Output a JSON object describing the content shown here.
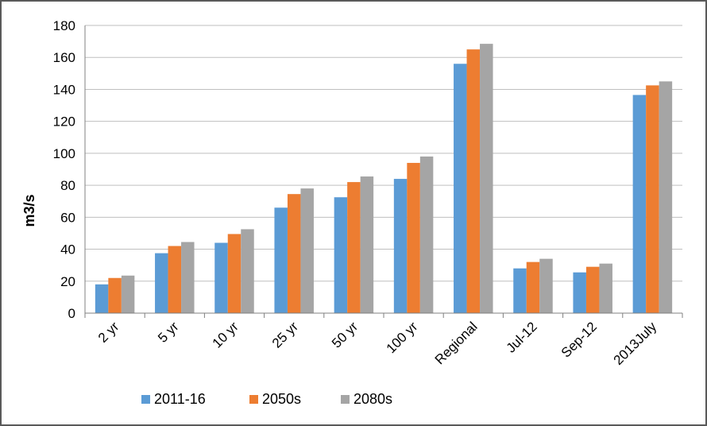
{
  "chart_data": {
    "type": "bar",
    "title": "",
    "xlabel": "",
    "ylabel": "m3/s",
    "ylim": [
      0,
      180
    ],
    "yticks": [
      "0",
      "20",
      "40",
      "60",
      "80",
      "100",
      "120",
      "140",
      "160",
      "180"
    ],
    "grid": true,
    "legend_position": "bottom",
    "categories": [
      "2 yr",
      "5 yr",
      "10 yr",
      "25 yr",
      "50 yr",
      "100 yr",
      "Regional",
      "Jul-12",
      "Sep-12",
      "2013July"
    ],
    "series": [
      {
        "name": "2011-16",
        "color": "#5B9BD5",
        "values": [
          18,
          37.5,
          44,
          66,
          72.5,
          84,
          156,
          28,
          25.5,
          136.5
        ]
      },
      {
        "name": "2050s",
        "color": "#ED7D31",
        "values": [
          22,
          42,
          49.5,
          74.5,
          82,
          94,
          165,
          32,
          29,
          142.5
        ]
      },
      {
        "name": "2080s",
        "color": "#A5A5A5",
        "values": [
          23.5,
          44.5,
          52.5,
          78,
          85.5,
          98,
          168.5,
          34,
          31,
          145
        ]
      }
    ]
  }
}
